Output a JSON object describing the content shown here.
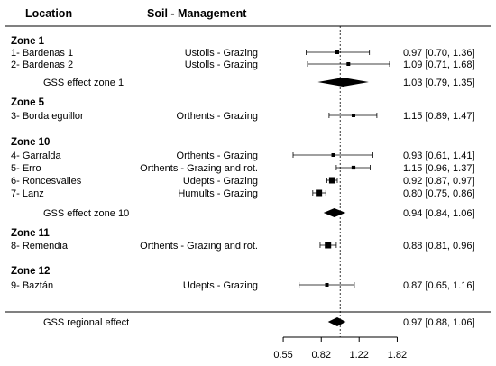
{
  "headers": {
    "location": "Location",
    "soil_management": "Soil - Management"
  },
  "chart_data": {
    "type": "forest",
    "axis": {
      "ticks": [
        0.55,
        0.82,
        1.22,
        1.82
      ],
      "tick_labels": [
        "0.55",
        "0.82",
        "1.22",
        "1.82"
      ],
      "scale": "log",
      "range": [
        0.5,
        1.9
      ],
      "reference_line": 1.0
    },
    "rows": [
      {
        "kind": "zone",
        "label": "Zone 1"
      },
      {
        "kind": "study",
        "label": "1- Bardenas 1",
        "soil": "Ustolls - Grazing",
        "est": 0.97,
        "lo": 0.7,
        "hi": 1.36,
        "text": "0.97 [0.70, 1.36]"
      },
      {
        "kind": "study",
        "label": "2- Bardenas 2",
        "soil": "Ustolls - Grazing",
        "est": 1.09,
        "lo": 0.71,
        "hi": 1.68,
        "text": "1.09 [0.71, 1.68]"
      },
      {
        "kind": "summary",
        "label": "GSS effect zone 1",
        "est": 1.03,
        "lo": 0.79,
        "hi": 1.35,
        "text": "1.03 [0.79, 1.35]"
      },
      {
        "kind": "zone",
        "label": "Zone 5"
      },
      {
        "kind": "study",
        "label": "3- Borda eguillor",
        "soil": "Orthents - Grazing",
        "est": 1.15,
        "lo": 0.89,
        "hi": 1.47,
        "text": "1.15 [0.89, 1.47]"
      },
      {
        "kind": "zone",
        "label": "Zone 10"
      },
      {
        "kind": "study",
        "label": "4- Garralda",
        "soil": "Orthents - Grazing",
        "est": 0.93,
        "lo": 0.61,
        "hi": 1.41,
        "text": "0.93 [0.61, 1.41]"
      },
      {
        "kind": "study",
        "label": "5- Erro",
        "soil": "Orthents - Grazing and rot.",
        "est": 1.15,
        "lo": 0.96,
        "hi": 1.37,
        "text": "1.15 [0.96, 1.37]"
      },
      {
        "kind": "study",
        "label": "6- Roncesvalles",
        "soil": "Udepts - Grazing",
        "est": 0.92,
        "lo": 0.87,
        "hi": 0.97,
        "text": "0.92 [0.87, 0.97]"
      },
      {
        "kind": "study",
        "label": "7- Lanz",
        "soil": "Humults - Grazing",
        "est": 0.8,
        "lo": 0.75,
        "hi": 0.86,
        "text": "0.80 [0.75, 0.86]"
      },
      {
        "kind": "summary",
        "label": "GSS effect zone 10",
        "est": 0.94,
        "lo": 0.84,
        "hi": 1.06,
        "text": "0.94 [0.84, 1.06]"
      },
      {
        "kind": "zone",
        "label": "Zone 11"
      },
      {
        "kind": "study",
        "label": "8- Remendia",
        "soil": "Orthents - Grazing and rot.",
        "est": 0.88,
        "lo": 0.81,
        "hi": 0.96,
        "text": "0.88 [0.81, 0.96]"
      },
      {
        "kind": "zone",
        "label": "Zone 12"
      },
      {
        "kind": "study",
        "label": "9- Baztán",
        "soil": "Udepts - Grazing",
        "est": 0.87,
        "lo": 0.65,
        "hi": 1.16,
        "text": "0.87 [0.65, 1.16]"
      },
      {
        "kind": "summary",
        "label": "GSS regional effect",
        "est": 0.97,
        "lo": 0.88,
        "hi": 1.06,
        "text": "0.97 [0.88, 1.06]"
      }
    ]
  }
}
